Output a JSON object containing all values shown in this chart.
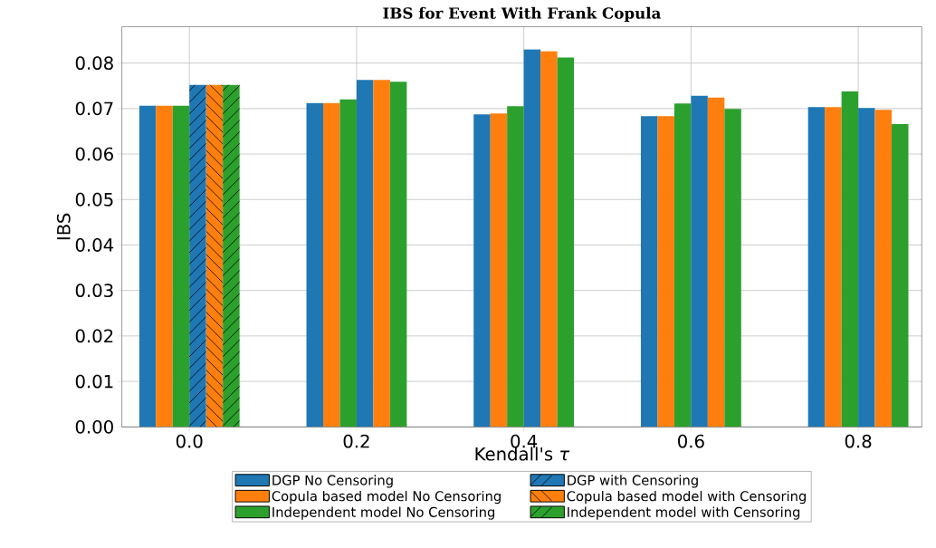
{
  "chart_data": {
    "type": "bar",
    "title": "IBS for Event With Frank Copula",
    "xlabel": "Kendall's *τ*",
    "ylabel": "IBS",
    "categories": [
      "0.0",
      "0.2",
      "0.4",
      "0.6",
      "0.8"
    ],
    "series": [
      {
        "name": "DGP No Censoring",
        "color": "#1f77b4",
        "values": [
          0.0706,
          0.0712,
          0.0687,
          0.0683,
          0.0703
        ]
      },
      {
        "name": "Copula based model No Censoring",
        "color": "#ff7f0e",
        "values": [
          0.0706,
          0.0712,
          0.0689,
          0.0683,
          0.0703
        ]
      },
      {
        "name": "Independent model No Censoring",
        "color": "#2ca02c",
        "values": [
          0.0706,
          0.072,
          0.0705,
          0.0711,
          0.0738
        ]
      },
      {
        "name": "DGP with Censoring",
        "color": "#1f77b4",
        "values": [
          0.0752,
          0.0763,
          0.083,
          0.0728,
          0.0701
        ]
      },
      {
        "name": "Copula based model with Censoring",
        "color": "#ff7f0e",
        "values": [
          0.0752,
          0.0763,
          0.0826,
          0.0724,
          0.0697
        ]
      },
      {
        "name": "Independent model with Censoring",
        "color": "#2ca02c",
        "values": [
          0.0752,
          0.0759,
          0.0812,
          0.0699,
          0.0666
        ]
      }
    ],
    "ylim": [
      0,
      0.088
    ],
    "yticks": [
      {
        "value": 0,
        "label": "0.00"
      },
      {
        "value": 0.01,
        "label": "0.01"
      },
      {
        "value": 0.02,
        "label": "0.02"
      },
      {
        "value": 0.03,
        "label": "0.03"
      },
      {
        "value": 0.04,
        "label": "0.04"
      },
      {
        "value": 0.05,
        "label": "0.05"
      },
      {
        "value": 0.06,
        "label": "0.06"
      },
      {
        "value": 0.07,
        "label": "0.07"
      },
      {
        "value": 0.08,
        "label": "0.08"
      }
    ],
    "grid": true,
    "legend": "bottom"
  }
}
